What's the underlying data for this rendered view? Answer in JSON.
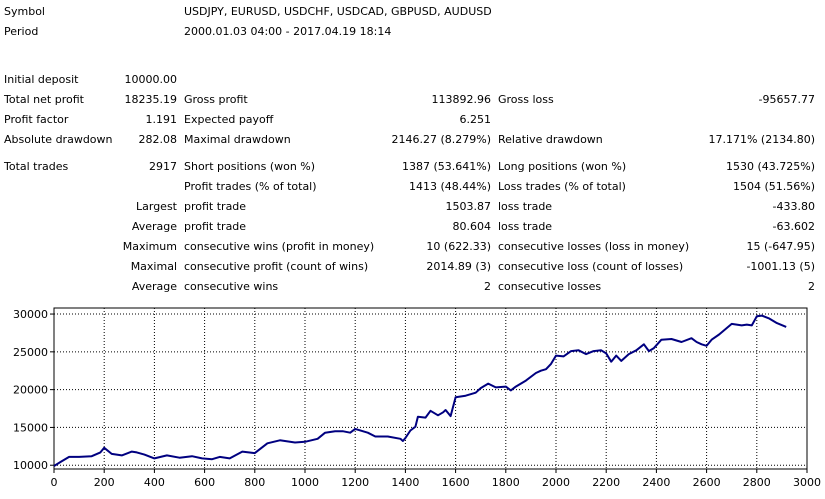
{
  "header": {
    "symbol_label": "Symbol",
    "symbol_value": "USDJPY, EURUSD, USDCHF, USDCAD, GBPUSD, AUDUSD",
    "period_label": "Period",
    "period_value": "2000.01.03 04:00 - 2017.04.19 18:14"
  },
  "stats": {
    "initial_deposit": {
      "label": "Initial deposit",
      "value": "10000.00"
    },
    "total_net_profit": {
      "label": "Total net profit",
      "value": "18235.19"
    },
    "gross_profit": {
      "label": "Gross profit",
      "value": "113892.96"
    },
    "gross_loss": {
      "label": "Gross loss",
      "value": "-95657.77"
    },
    "profit_factor": {
      "label": "Profit factor",
      "value": "1.191"
    },
    "expected_payoff": {
      "label": "Expected payoff",
      "value": "6.251"
    },
    "absolute_drawdown": {
      "label": "Absolute drawdown",
      "value": "282.08"
    },
    "maximal_drawdown": {
      "label": "Maximal drawdown",
      "value": "2146.27 (8.279%)"
    },
    "relative_drawdown": {
      "label": "Relative drawdown",
      "value": "17.171% (2134.80)"
    },
    "total_trades": {
      "label": "Total trades",
      "value": "2917"
    },
    "short_positions": {
      "label": "Short positions (won %)",
      "value": "1387 (53.641%)"
    },
    "long_positions": {
      "label": "Long positions (won %)",
      "value": "1530 (43.725%)"
    },
    "profit_trades": {
      "label": "Profit trades (% of total)",
      "value": "1413 (48.44%)"
    },
    "loss_trades": {
      "label": "Loss trades (% of total)",
      "value": "1504 (51.56%)"
    },
    "largest": {
      "label": "Largest",
      "profit_label": "profit trade",
      "profit_value": "1503.87",
      "loss_label": "loss trade",
      "loss_value": "-433.80"
    },
    "average_trade": {
      "label": "Average",
      "profit_label": "profit trade",
      "profit_value": "80.604",
      "loss_label": "loss trade",
      "loss_value": "-63.602"
    },
    "maximum_consecutive": {
      "label": "Maximum",
      "wins_label": "consecutive wins (profit in money)",
      "wins_value": "10 (622.33)",
      "losses_label": "consecutive losses (loss in money)",
      "losses_value": "15 (-647.95)"
    },
    "maximal_consecutive": {
      "label": "Maximal",
      "profit_label": "consecutive profit (count of wins)",
      "profit_value": "2014.89 (3)",
      "loss_label": "consecutive loss (count of losses)",
      "loss_value": "-1001.13 (5)"
    },
    "average_consecutive": {
      "label": "Average",
      "wins_label": "consecutive wins",
      "wins_value": "2",
      "losses_label": "consecutive losses",
      "losses_value": "2"
    }
  },
  "colors": {
    "line": "#000080",
    "grid": "#000000",
    "axis": "#000000"
  },
  "chart_data": {
    "type": "line",
    "title": "",
    "xlabel": "",
    "ylabel": "",
    "xlim": [
      0,
      3000
    ],
    "ylim": [
      9500,
      30800
    ],
    "xticks": [
      "0",
      "200",
      "400",
      "600",
      "800",
      "1000",
      "1200",
      "1400",
      "1600",
      "1800",
      "2000",
      "2200",
      "2400",
      "2600",
      "2800",
      "3000"
    ],
    "yticks": [
      "10000",
      "15000",
      "20000",
      "25000",
      "30000"
    ],
    "grid": true,
    "series": [
      {
        "x": [
          0,
          30,
          60,
          100,
          150,
          185,
          200,
          230,
          270,
          310,
          330,
          360,
          400,
          450,
          500,
          550,
          590,
          630,
          660,
          700,
          750,
          800,
          850,
          900,
          960,
          1000,
          1050,
          1080,
          1120,
          1150,
          1180,
          1200,
          1250,
          1280,
          1330,
          1380,
          1390,
          1400,
          1420,
          1440,
          1450,
          1480,
          1500,
          1530,
          1550,
          1560,
          1580,
          1600,
          1640,
          1680,
          1700,
          1730,
          1760,
          1800,
          1820,
          1840,
          1880,
          1920,
          1940,
          1960,
          1980,
          2000,
          2030,
          2060,
          2090,
          2120,
          2150,
          2180,
          2200,
          2220,
          2240,
          2260,
          2290,
          2320,
          2350,
          2370,
          2390,
          2420,
          2460,
          2500,
          2540,
          2560,
          2580,
          2600,
          2620,
          2650,
          2700,
          2740,
          2760,
          2780,
          2800,
          2820,
          2850,
          2880,
          2917
        ],
        "y": [
          9900,
          10500,
          11100,
          11100,
          11200,
          11700,
          12300,
          11500,
          11300,
          11800,
          11700,
          11400,
          10900,
          11300,
          11000,
          11200,
          10900,
          10800,
          11100,
          10900,
          11800,
          11600,
          12900,
          13300,
          13000,
          13100,
          13500,
          14300,
          14500,
          14500,
          14300,
          14800,
          14300,
          13800,
          13800,
          13500,
          13200,
          13600,
          14600,
          15100,
          16400,
          16300,
          17200,
          16600,
          17000,
          17300,
          16500,
          19000,
          19200,
          19600,
          20200,
          20800,
          20300,
          20400,
          19900,
          20400,
          21200,
          22200,
          22500,
          22700,
          23400,
          24500,
          24400,
          25100,
          25200,
          24700,
          25100,
          25200,
          24800,
          23700,
          24500,
          23800,
          24700,
          25200,
          26000,
          25100,
          25500,
          26600,
          26700,
          26300,
          26800,
          26300,
          26000,
          25800,
          26600,
          27300,
          28700,
          28500,
          28600,
          28500,
          29700,
          29800,
          29400,
          28800,
          28300
        ]
      }
    ]
  }
}
